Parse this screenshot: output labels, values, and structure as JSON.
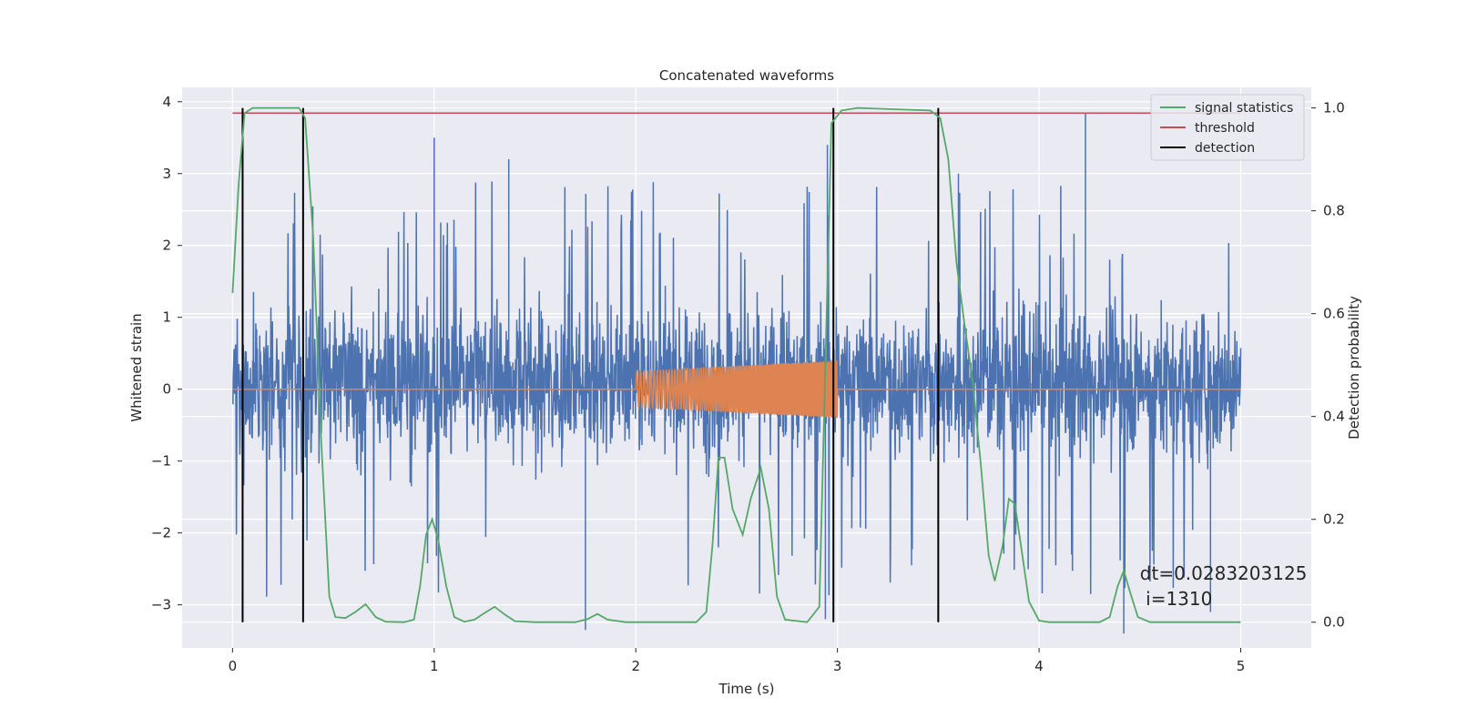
{
  "chart_data": {
    "type": "line",
    "title": "Concatenated waveforms",
    "xlabel": "Time (s)",
    "ylabel": "Whitened strain",
    "y2label": "Detection probability",
    "xlim": [
      -0.25,
      5.35
    ],
    "ylim": [
      -3.6,
      4.2
    ],
    "y2lim": [
      -0.05,
      1.04
    ],
    "xticks": [
      0,
      1,
      2,
      3,
      4,
      5
    ],
    "yticks": [
      -3,
      -2,
      -1,
      0,
      1,
      2,
      3,
      4
    ],
    "y2ticks": [
      0.0,
      0.2,
      0.4,
      0.6,
      0.8,
      1.0
    ],
    "xtick_labels": [
      "0",
      "1",
      "2",
      "3",
      "4",
      "5"
    ],
    "ytick_labels": [
      "−3",
      "−2",
      "−1",
      "0",
      "1",
      "2",
      "3",
      "4"
    ],
    "y2tick_labels": [
      "0.0",
      "0.2",
      "0.4",
      "0.6",
      "0.8",
      "1.0"
    ],
    "grid": true,
    "legend_position": "top-right",
    "colors": {
      "strain": "#4c72b0",
      "injection": "#dd8452",
      "signal_statistics": "#55a868",
      "threshold": "#c44e52",
      "detection": "#000000",
      "background": "#eaeaf2"
    },
    "legend": [
      {
        "key": "signal_statistics",
        "label": "signal statistics"
      },
      {
        "key": "threshold",
        "label": "threshold"
      },
      {
        "key": "detection",
        "label": "detection"
      }
    ],
    "strain": {
      "x_range": [
        0,
        5
      ],
      "typical_range": [
        -1.5,
        2.2
      ],
      "peaks": [
        {
          "x": 0.05,
          "y": 3.35
        },
        {
          "x": 1.0,
          "y": 3.5
        },
        {
          "x": 1.37,
          "y": 3.2
        },
        {
          "x": 2.95,
          "y": 3.4
        },
        {
          "x": 4.23,
          "y": 3.85
        },
        {
          "x": 3.6,
          "y": 3.0
        },
        {
          "x": 0.05,
          "y": -3.15
        },
        {
          "x": 1.75,
          "y": -3.35
        },
        {
          "x": 2.94,
          "y": -3.2
        },
        {
          "x": 4.42,
          "y": -3.4
        },
        {
          "x": 4.85,
          "y": -3.1
        }
      ]
    },
    "injection": {
      "x_range": [
        2.0,
        3.0
      ],
      "amplitude_range": [
        0.25,
        0.4
      ],
      "baseline": 0
    },
    "signal_statistics": [
      [
        0.0,
        0.64
      ],
      [
        0.03,
        0.85
      ],
      [
        0.06,
        0.99
      ],
      [
        0.1,
        1.0
      ],
      [
        0.33,
        1.0
      ],
      [
        0.36,
        0.98
      ],
      [
        0.4,
        0.75
      ],
      [
        0.44,
        0.35
      ],
      [
        0.48,
        0.05
      ],
      [
        0.51,
        0.01
      ],
      [
        0.56,
        0.008
      ],
      [
        0.61,
        0.02
      ],
      [
        0.66,
        0.035
      ],
      [
        0.71,
        0.01
      ],
      [
        0.76,
        0.001
      ],
      [
        0.85,
        0.0
      ],
      [
        0.9,
        0.005
      ],
      [
        0.93,
        0.07
      ],
      [
        0.96,
        0.17
      ],
      [
        0.99,
        0.2
      ],
      [
        1.02,
        0.16
      ],
      [
        1.06,
        0.07
      ],
      [
        1.1,
        0.01
      ],
      [
        1.15,
        0.001
      ],
      [
        1.2,
        0.005
      ],
      [
        1.25,
        0.018
      ],
      [
        1.3,
        0.03
      ],
      [
        1.35,
        0.015
      ],
      [
        1.4,
        0.002
      ],
      [
        1.5,
        0.0
      ],
      [
        1.7,
        0.0
      ],
      [
        1.76,
        0.006
      ],
      [
        1.81,
        0.016
      ],
      [
        1.86,
        0.005
      ],
      [
        1.95,
        0.0
      ],
      [
        2.3,
        0.0
      ],
      [
        2.35,
        0.02
      ],
      [
        2.38,
        0.15
      ],
      [
        2.41,
        0.32
      ],
      [
        2.44,
        0.32
      ],
      [
        2.48,
        0.22
      ],
      [
        2.53,
        0.17
      ],
      [
        2.57,
        0.24
      ],
      [
        2.62,
        0.3
      ],
      [
        2.66,
        0.22
      ],
      [
        2.7,
        0.05
      ],
      [
        2.74,
        0.005
      ],
      [
        2.85,
        0.0
      ],
      [
        2.91,
        0.03
      ],
      [
        2.94,
        0.5
      ],
      [
        2.97,
        0.97
      ],
      [
        3.02,
        0.995
      ],
      [
        3.1,
        1.0
      ],
      [
        3.46,
        0.995
      ],
      [
        3.51,
        0.98
      ],
      [
        3.55,
        0.9
      ],
      [
        3.59,
        0.7
      ],
      [
        3.63,
        0.58
      ],
      [
        3.67,
        0.47
      ],
      [
        3.71,
        0.31
      ],
      [
        3.75,
        0.13
      ],
      [
        3.78,
        0.08
      ],
      [
        3.82,
        0.15
      ],
      [
        3.85,
        0.24
      ],
      [
        3.88,
        0.23
      ],
      [
        3.91,
        0.15
      ],
      [
        3.95,
        0.04
      ],
      [
        4.0,
        0.003
      ],
      [
        4.05,
        0.0
      ],
      [
        4.3,
        0.0
      ],
      [
        4.35,
        0.01
      ],
      [
        4.39,
        0.07
      ],
      [
        4.42,
        0.1
      ],
      [
        4.45,
        0.06
      ],
      [
        4.49,
        0.01
      ],
      [
        4.55,
        0.0
      ],
      [
        5.0,
        0.0
      ]
    ],
    "threshold": {
      "value": 0.99,
      "x_range": [
        0,
        5
      ]
    },
    "detection": {
      "x": [
        0.05,
        0.35,
        2.98,
        3.5
      ],
      "ymin": 0.0,
      "ymax": 1.0
    },
    "annotation": {
      "line1": "dt=0.0283203125",
      "line2": " i=1310",
      "x": 4.5,
      "y": -2.65
    }
  }
}
